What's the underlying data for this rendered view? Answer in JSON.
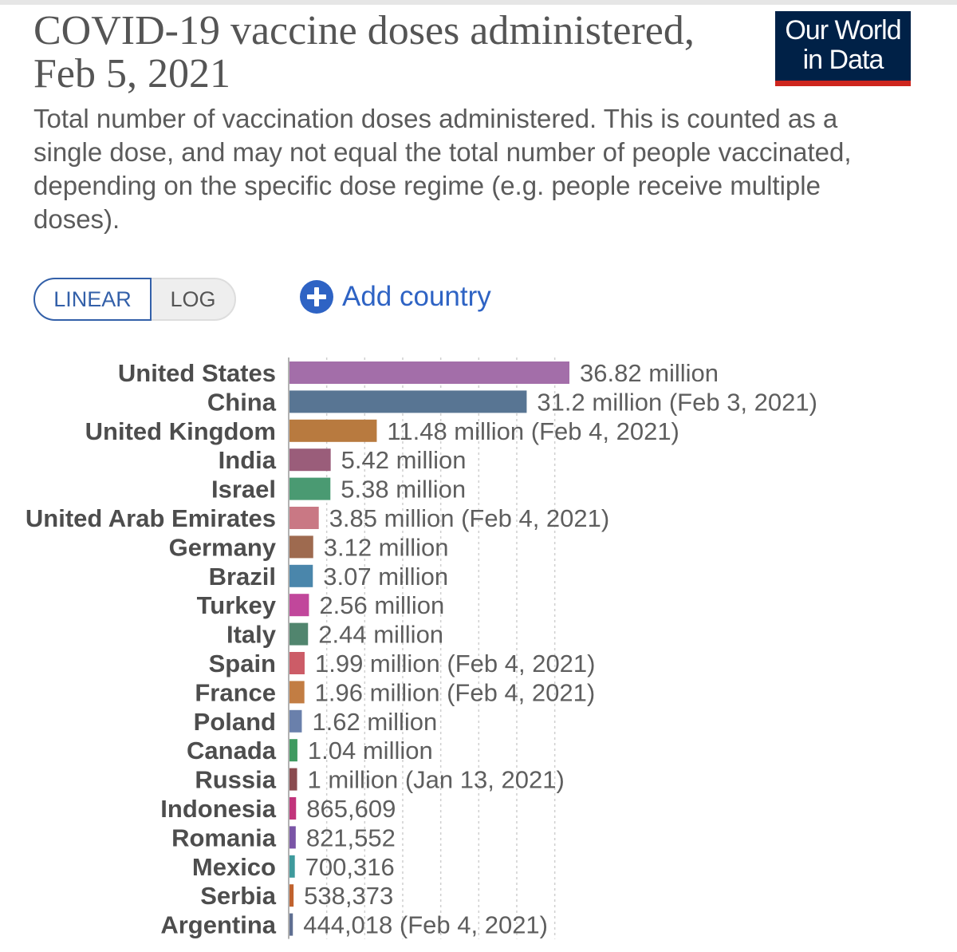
{
  "header": {
    "title": "COVID-19 vaccine doses administered, Feb 5, 2021",
    "subtitle": "Total number of vaccination doses administered. This is counted as a single dose, and may not equal the total number of people vaccinated, depending on the specific dose regime (e.g. people receive multiple doses).",
    "logo_line1": "Our World",
    "logo_line2": "in Data"
  },
  "controls": {
    "linear_label": "LINEAR",
    "log_label": "LOG",
    "selected_scale": "LINEAR",
    "add_country_label": "Add country",
    "add_icon": "plus-circle-icon"
  },
  "colors": {
    "logo_background": "#002147",
    "logo_accent": "#ce261e",
    "link_blue": "#2e63c4",
    "toggle_active": "#3360a9"
  },
  "chart_data": {
    "type": "bar",
    "orientation": "horizontal",
    "title": "COVID-19 vaccine doses administered, Feb 5, 2021",
    "xlim": [
      0,
      36820000
    ],
    "grid": true,
    "legend": "none",
    "categories": [
      "United States",
      "China",
      "United Kingdom",
      "India",
      "Israel",
      "United Arab Emirates",
      "Germany",
      "Brazil",
      "Turkey",
      "Italy",
      "Spain",
      "France",
      "Poland",
      "Canada",
      "Russia",
      "Indonesia",
      "Romania",
      "Mexico",
      "Serbia",
      "Argentina"
    ],
    "values": [
      36820000,
      31200000,
      11480000,
      5420000,
      5380000,
      3850000,
      3120000,
      3070000,
      2560000,
      2440000,
      1990000,
      1960000,
      1620000,
      1040000,
      1000000,
      865609,
      821552,
      700316,
      538373,
      444018
    ],
    "value_labels": [
      "36.82 million",
      "31.2 million (Feb 3, 2021)",
      "11.48 million (Feb 4, 2021)",
      "5.42 million",
      "5.38 million",
      "3.85 million (Feb 4, 2021)",
      "3.12 million",
      "3.07 million",
      "2.56 million",
      "2.44 million",
      "1.99 million (Feb 4, 2021)",
      "1.96 million (Feb 4, 2021)",
      "1.62 million",
      "1.04 million",
      "1 million (Jan 13, 2021)",
      "865,609",
      "821,552",
      "700,316",
      "538,373",
      "444,018 (Feb 4, 2021)"
    ],
    "colors": [
      "#a36ea9",
      "#587593",
      "#b87a3f",
      "#9a5d7a",
      "#4a9a72",
      "#c97884",
      "#9e6a4f",
      "#4a86ab",
      "#c1479b",
      "#51856e",
      "#cc5c67",
      "#c27d43",
      "#6a80ab",
      "#3f9a60",
      "#8a4b4f",
      "#c1347b",
      "#7a55a6",
      "#3e9a9c",
      "#c0622e",
      "#5f6f91"
    ]
  }
}
